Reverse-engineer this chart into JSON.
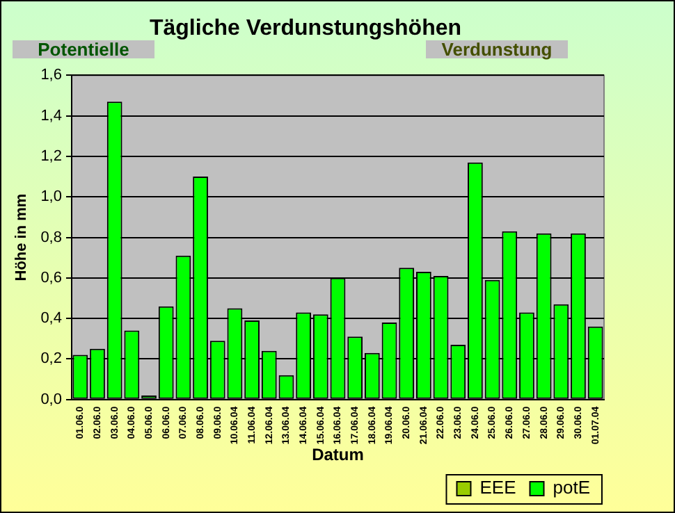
{
  "chart_data": {
    "type": "bar",
    "title": "Tägliche Verdunstungshöhen",
    "annotations": [
      "Potentielle",
      "Verdunstung"
    ],
    "xlabel": "Datum",
    "ylabel": "Höhe in mm",
    "categories": [
      "01.06.0",
      "02.06.0",
      "03.06.0",
      "04.06.0",
      "05.06.0",
      "06.06.0",
      "07.06.0",
      "08.06.0",
      "09.06.0",
      "10.06.04",
      "11.06.04",
      "12.06.04",
      "13.06.04",
      "14.06.04",
      "15.06.04",
      "16.06.04",
      "17.06.04",
      "18.06.04",
      "19.06.04",
      "20.06.0",
      "21.06.04",
      "22.06.0",
      "23.06.0",
      "24.06.0",
      "25.06.0",
      "26.06.0",
      "27.06.0",
      "28.06.0",
      "29.06.0",
      "30.06.0",
      "01.07.04"
    ],
    "series": [
      {
        "name": "EEE",
        "color": "#99cc00",
        "values": [
          null,
          null,
          null,
          null,
          null,
          null,
          null,
          null,
          null,
          null,
          null,
          null,
          null,
          null,
          null,
          null,
          null,
          null,
          null,
          null,
          null,
          null,
          null,
          null,
          null,
          null,
          null,
          null,
          null,
          null,
          null
        ]
      },
      {
        "name": "potE",
        "color": "#00ff00",
        "values": [
          0.22,
          0.25,
          1.47,
          0.34,
          0.02,
          0.46,
          0.71,
          1.1,
          0.29,
          0.45,
          0.39,
          0.24,
          0.12,
          0.43,
          0.42,
          0.6,
          0.31,
          0.23,
          0.38,
          0.65,
          0.63,
          0.61,
          0.27,
          1.17,
          0.59,
          0.83,
          0.43,
          0.82,
          0.47,
          0.82,
          0.36
        ]
      }
    ],
    "ylim": [
      0,
      1.6
    ],
    "yticks": [
      {
        "value": 0,
        "label": "0,0"
      },
      {
        "value": 0.2,
        "label": "0,2"
      },
      {
        "value": 0.4,
        "label": "0,4"
      },
      {
        "value": 0.6,
        "label": "0,6"
      },
      {
        "value": 0.8,
        "label": "0,8"
      },
      {
        "value": 1,
        "label": "1,0"
      },
      {
        "value": 1.2,
        "label": "1,2"
      },
      {
        "value": 1.4,
        "label": "1,4"
      },
      {
        "value": 1.6,
        "label": "1,6"
      }
    ],
    "grid": "y",
    "legend": "bottom right"
  }
}
